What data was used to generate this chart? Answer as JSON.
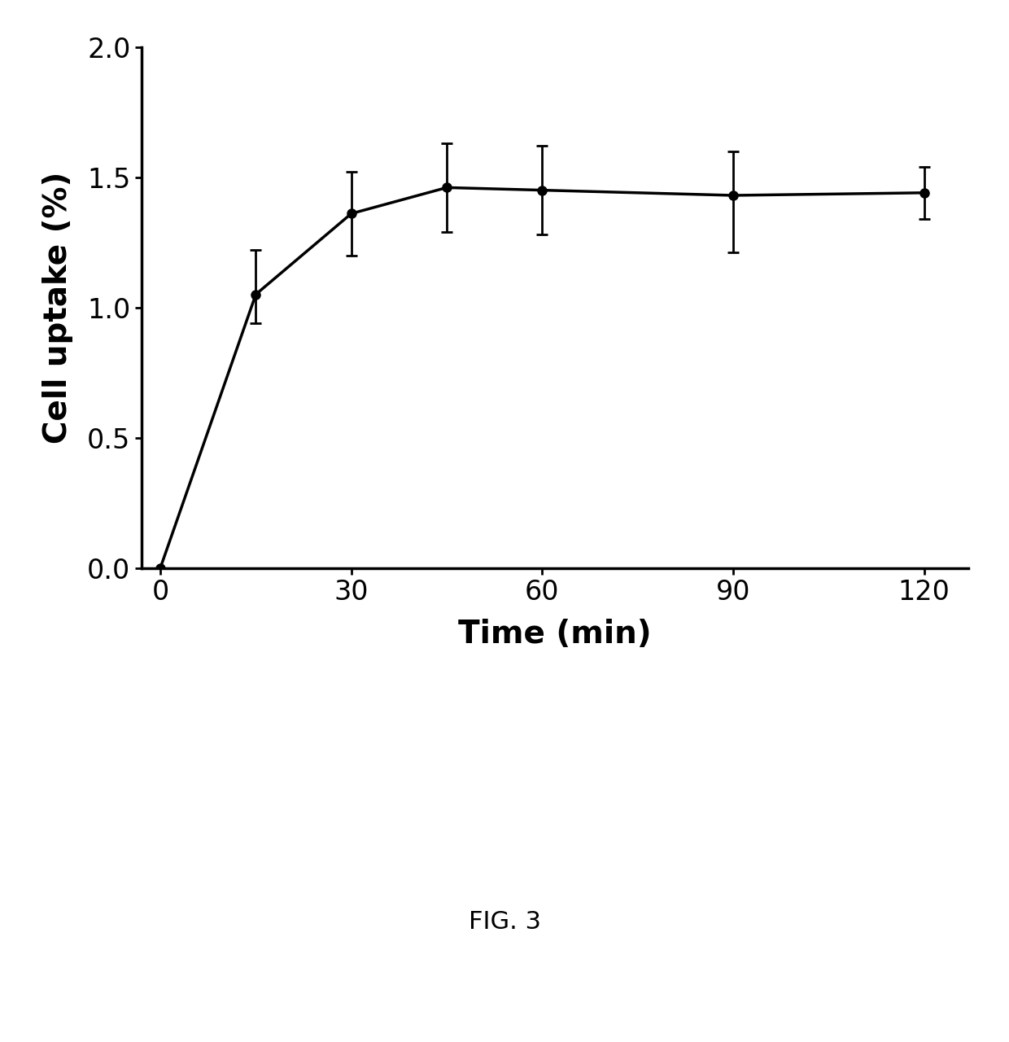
{
  "x": [
    0,
    15,
    30,
    45,
    60,
    90,
    120
  ],
  "y": [
    0.0,
    1.05,
    1.36,
    1.46,
    1.45,
    1.43,
    1.44
  ],
  "yerr_upper": [
    0.0,
    0.17,
    0.16,
    0.17,
    0.17,
    0.17,
    0.1
  ],
  "yerr_lower": [
    0.0,
    0.11,
    0.16,
    0.17,
    0.17,
    0.22,
    0.1
  ],
  "xlabel": "Time (min)",
  "ylabel": "Cell uptake (%)",
  "xlim": [
    -3,
    127
  ],
  "ylim": [
    0.0,
    2.0
  ],
  "xticks": [
    0,
    30,
    60,
    90,
    120
  ],
  "yticks": [
    0.0,
    0.5,
    1.0,
    1.5,
    2.0
  ],
  "line_color": "#000000",
  "marker_color": "#000000",
  "marker_size": 8,
  "line_width": 2.5,
  "capsize": 5,
  "xlabel_fontsize": 28,
  "ylabel_fontsize": 28,
  "tick_fontsize": 24,
  "fig_caption": "FIG. 3",
  "fig_caption_fontsize": 22,
  "background_color": "#ffffff"
}
